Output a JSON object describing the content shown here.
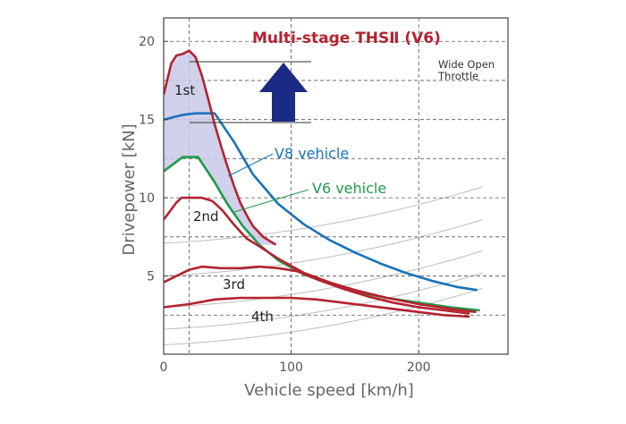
{
  "chart_data": {
    "type": "line",
    "title": "Multi-stage THSⅡ (V6)",
    "xlabel": "Vehicle speed [km/h]",
    "ylabel": "Drivepower [kN]",
    "xlim": [
      0,
      270
    ],
    "ylim": [
      0,
      21.5
    ],
    "xticks": [
      0,
      100,
      200
    ],
    "yticks": [
      5,
      10,
      15,
      20
    ],
    "annotation": "Wide Open Throttle",
    "colors": {
      "red": "#b3232f",
      "blue": "#1a73b8",
      "green": "#1f9a4a",
      "fill": "#c9c9e8",
      "arrow": "#1b2a85",
      "title": "#b3232f"
    },
    "series": [
      {
        "name": "V8 vehicle",
        "color": "#1a73b8",
        "points": [
          [
            0,
            15.0
          ],
          [
            15,
            15.3
          ],
          [
            25,
            15.4
          ],
          [
            40,
            15.4
          ],
          [
            55,
            13.6
          ],
          [
            70,
            11.5
          ],
          [
            90,
            9.6
          ],
          [
            110,
            8.3
          ],
          [
            130,
            7.3
          ],
          [
            150,
            6.5
          ],
          [
            170,
            5.8
          ],
          [
            190,
            5.2
          ],
          [
            210,
            4.7
          ],
          [
            230,
            4.3
          ],
          [
            246,
            4.1
          ]
        ]
      },
      {
        "name": "V6 vehicle",
        "color": "#1f9a4a",
        "points": [
          [
            0,
            11.7
          ],
          [
            15,
            12.6
          ],
          [
            27,
            12.6
          ],
          [
            40,
            11.0
          ],
          [
            50,
            9.6
          ],
          [
            62,
            8.2
          ],
          [
            75,
            7.0
          ],
          [
            90,
            6.0
          ],
          [
            110,
            5.1
          ],
          [
            130,
            4.5
          ],
          [
            150,
            4.0
          ],
          [
            175,
            3.6
          ],
          [
            200,
            3.3
          ],
          [
            225,
            3.0
          ],
          [
            248,
            2.8
          ]
        ]
      }
    ],
    "gears": [
      {
        "label": "1st",
        "color": "#b3232f",
        "points": [
          [
            0,
            16.6
          ],
          [
            6,
            18.6
          ],
          [
            10,
            19.1
          ],
          [
            15,
            19.2
          ],
          [
            20,
            19.4
          ],
          [
            25,
            19.0
          ],
          [
            30,
            17.8
          ],
          [
            35,
            16.3
          ],
          [
            40,
            14.7
          ],
          [
            45,
            13.3
          ],
          [
            50,
            12.0
          ],
          [
            55,
            10.8
          ],
          [
            60,
            9.7
          ],
          [
            65,
            8.9
          ],
          [
            70,
            8.2
          ],
          [
            78,
            7.5
          ],
          [
            88,
            7.0
          ]
        ]
      },
      {
        "label": "2nd",
        "color": "#b3232f",
        "points": [
          [
            0,
            8.6
          ],
          [
            10,
            9.7
          ],
          [
            14,
            10.0
          ],
          [
            30,
            10.0
          ],
          [
            38,
            9.8
          ],
          [
            46,
            9.2
          ],
          [
            55,
            8.3
          ],
          [
            65,
            7.4
          ],
          [
            75,
            6.9
          ],
          [
            90,
            6.1
          ],
          [
            110,
            5.2
          ],
          [
            130,
            4.6
          ],
          [
            150,
            4.1
          ],
          [
            175,
            3.6
          ],
          [
            200,
            3.2
          ],
          [
            225,
            2.9
          ],
          [
            245,
            2.7
          ]
        ]
      },
      {
        "label": "3rd",
        "color": "#b3232f",
        "points": [
          [
            0,
            4.6
          ],
          [
            10,
            5.0
          ],
          [
            20,
            5.4
          ],
          [
            30,
            5.6
          ],
          [
            45,
            5.5
          ],
          [
            60,
            5.5
          ],
          [
            75,
            5.6
          ],
          [
            90,
            5.5
          ],
          [
            105,
            5.3
          ],
          [
            120,
            4.8
          ],
          [
            140,
            4.2
          ],
          [
            160,
            3.7
          ],
          [
            180,
            3.3
          ],
          [
            200,
            3.0
          ],
          [
            220,
            2.8
          ],
          [
            240,
            2.6
          ]
        ]
      },
      {
        "label": "4th",
        "color": "#b3232f",
        "points": [
          [
            0,
            3.0
          ],
          [
            20,
            3.2
          ],
          [
            40,
            3.5
          ],
          [
            60,
            3.6
          ],
          [
            80,
            3.6
          ],
          [
            100,
            3.6
          ],
          [
            120,
            3.5
          ],
          [
            140,
            3.3
          ],
          [
            160,
            3.1
          ],
          [
            180,
            2.9
          ],
          [
            200,
            2.7
          ],
          [
            220,
            2.5
          ],
          [
            240,
            2.4
          ]
        ]
      }
    ],
    "grid": true
  }
}
